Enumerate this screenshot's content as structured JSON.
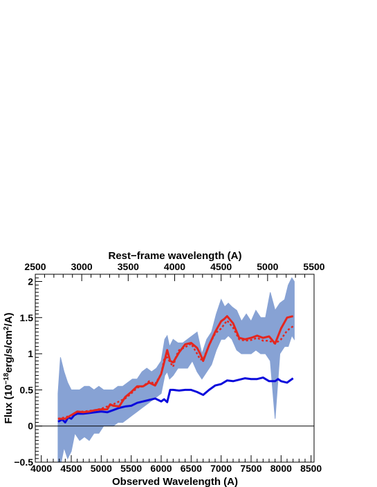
{
  "chart_data": {
    "type": "line",
    "title": "",
    "xlabel": "Observed Wavelength (A)",
    "top_xlabel": "Rest−frame wavelength (A)",
    "ylabel": "Flux (10",
    "ylabel_exp": "−18",
    "ylabel_mid": "erg/s/cm",
    "ylabel_sq": "2",
    "ylabel_end": "/A)",
    "xlim": [
      3900,
      8550
    ],
    "ylim": [
      -0.5,
      2.1
    ],
    "top_xlim": [
      2500,
      5500
    ],
    "xticks": [
      4000,
      4500,
      5000,
      5500,
      6000,
      6500,
      7000,
      7500,
      8000,
      8500
    ],
    "xtick_labels": [
      "4000",
      "4500",
      "5000",
      "5500",
      "6000",
      "6500",
      "7000",
      "7500",
      "8000",
      "8500"
    ],
    "top_xticks": [
      2500,
      3000,
      3500,
      4000,
      4500,
      5000,
      5500
    ],
    "top_xtick_labels": [
      "2500",
      "3000",
      "3500",
      "4000",
      "4500",
      "5000",
      "5500"
    ],
    "yticks": [
      -0.5,
      0,
      0.5,
      1,
      1.5,
      2
    ],
    "ytick_labels": [
      "−0.5",
      "0",
      "0.5",
      "1",
      "1.5",
      "2"
    ],
    "zero_line": 0,
    "grid": false,
    "series": [
      {
        "style": "band",
        "color": "#7b98d0",
        "x": [
          4280,
          4320,
          4380,
          4440,
          4500,
          4560,
          4640,
          4720,
          4800,
          4880,
          4960,
          5040,
          5120,
          5200,
          5280,
          5360,
          5440,
          5520,
          5600,
          5680,
          5760,
          5840,
          5920,
          6000,
          6060,
          6100,
          6140,
          6200,
          6280,
          6360,
          6440,
          6520,
          6600,
          6680,
          6760,
          6840,
          6920,
          7000,
          7060,
          7120,
          7180,
          7260,
          7340,
          7420,
          7500,
          7580,
          7660,
          7740,
          7820,
          7900,
          7980,
          8060,
          8120,
          8180,
          8220
        ],
        "upper": [
          0.45,
          0.95,
          0.75,
          0.6,
          0.5,
          0.5,
          0.5,
          0.55,
          0.55,
          0.5,
          0.55,
          0.5,
          0.5,
          0.5,
          0.55,
          0.55,
          0.6,
          0.65,
          0.65,
          0.75,
          0.8,
          0.75,
          0.8,
          0.9,
          1.2,
          1.25,
          1.1,
          1.2,
          1.15,
          1.15,
          1.2,
          1.25,
          1.3,
          1.0,
          1.2,
          1.3,
          1.55,
          1.75,
          1.65,
          1.7,
          1.65,
          1.6,
          1.45,
          1.55,
          1.45,
          1.6,
          1.5,
          1.5,
          1.85,
          1.6,
          1.7,
          1.75,
          1.95,
          2.05,
          2.0
        ],
        "lower": [
          -0.55,
          -0.55,
          -0.3,
          -0.45,
          -0.35,
          -0.1,
          -0.2,
          -0.15,
          -0.2,
          -0.1,
          -0.1,
          0.0,
          0.0,
          0.0,
          0.05,
          0.05,
          0.1,
          0.15,
          0.2,
          0.25,
          0.3,
          0.35,
          0.4,
          0.45,
          0.7,
          0.75,
          0.65,
          0.7,
          0.8,
          0.8,
          0.8,
          0.9,
          0.75,
          0.65,
          0.75,
          0.85,
          1.05,
          1.2,
          1.2,
          1.25,
          1.2,
          1.05,
          1.0,
          1.0,
          1.0,
          1.05,
          1.0,
          1.0,
          0.9,
          0.1,
          1.0,
          1.1,
          1.1,
          1.25,
          1.2
        ]
      },
      {
        "style": "solid",
        "color": "#0a0adc",
        "x": [
          4280,
          4350,
          4400,
          4450,
          4500,
          4550,
          4600,
          4700,
          4800,
          4900,
          5000,
          5100,
          5200,
          5300,
          5400,
          5500,
          5600,
          5700,
          5800,
          5900,
          6000,
          6050,
          6100,
          6150,
          6200,
          6300,
          6400,
          6500,
          6600,
          6700,
          6800,
          6900,
          7000,
          7100,
          7200,
          7300,
          7400,
          7500,
          7600,
          7700,
          7800,
          7900,
          7950,
          8000,
          8100,
          8200
        ],
        "y": [
          0.06,
          0.09,
          0.05,
          0.12,
          0.1,
          0.15,
          0.17,
          0.17,
          0.18,
          0.19,
          0.2,
          0.19,
          0.22,
          0.25,
          0.27,
          0.28,
          0.32,
          0.34,
          0.36,
          0.38,
          0.34,
          0.37,
          0.33,
          0.5,
          0.5,
          0.49,
          0.5,
          0.5,
          0.47,
          0.43,
          0.5,
          0.56,
          0.58,
          0.63,
          0.62,
          0.64,
          0.66,
          0.65,
          0.65,
          0.67,
          0.62,
          0.62,
          0.65,
          0.62,
          0.6,
          0.66
        ]
      },
      {
        "style": "dotted",
        "color": "#e4261e",
        "x": [
          4280,
          4400,
          4500,
          4600,
          4700,
          4800,
          4900,
          5000,
          5100,
          5200,
          5300,
          5400,
          5500,
          5600,
          5700,
          5800,
          5900,
          6000,
          6050,
          6100,
          6150,
          6200,
          6250,
          6300,
          6400,
          6500,
          6600,
          6650,
          6700,
          6800,
          6900,
          7000,
          7100,
          7200,
          7300,
          7400,
          7500,
          7600,
          7700,
          7800,
          7900,
          8000,
          8100,
          8200
        ],
        "y": [
          0.1,
          0.12,
          0.15,
          0.2,
          0.2,
          0.21,
          0.22,
          0.24,
          0.27,
          0.3,
          0.34,
          0.38,
          0.45,
          0.53,
          0.55,
          0.62,
          0.58,
          0.72,
          0.92,
          0.95,
          0.88,
          0.82,
          0.97,
          1.05,
          1.09,
          1.14,
          1.0,
          0.92,
          0.92,
          1.12,
          1.28,
          1.35,
          1.46,
          1.36,
          1.2,
          1.18,
          1.19,
          1.22,
          1.18,
          1.18,
          1.14,
          1.2,
          1.32,
          1.38
        ]
      },
      {
        "style": "solid",
        "color": "#e4261e",
        "x": [
          4280,
          4400,
          4500,
          4600,
          4700,
          4800,
          4900,
          5000,
          5100,
          5150,
          5200,
          5300,
          5400,
          5500,
          5600,
          5700,
          5800,
          5900,
          6000,
          6050,
          6100,
          6150,
          6200,
          6300,
          6400,
          6500,
          6600,
          6650,
          6700,
          6800,
          6900,
          7000,
          7050,
          7100,
          7200,
          7300,
          7400,
          7500,
          7600,
          7700,
          7800,
          7900,
          8000,
          8100,
          8200
        ],
        "y": [
          0.1,
          0.1,
          0.15,
          0.2,
          0.19,
          0.2,
          0.22,
          0.23,
          0.23,
          0.3,
          0.28,
          0.27,
          0.4,
          0.47,
          0.55,
          0.55,
          0.6,
          0.56,
          0.72,
          0.88,
          1.05,
          0.9,
          0.88,
          1.02,
          1.13,
          1.15,
          1.08,
          1.0,
          0.9,
          1.12,
          1.3,
          1.45,
          1.48,
          1.52,
          1.42,
          1.22,
          1.2,
          1.22,
          1.25,
          1.22,
          1.24,
          1.14,
          1.35,
          1.5,
          1.52
        ]
      }
    ]
  }
}
